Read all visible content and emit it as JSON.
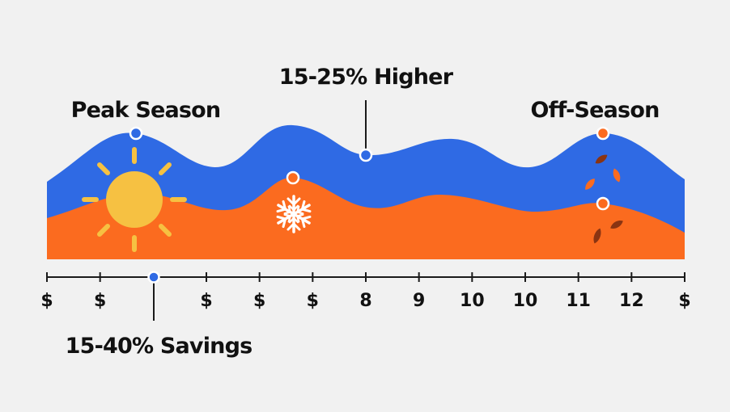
{
  "chart_data": {
    "type": "area",
    "colors": {
      "background": "#f1f1f1",
      "upper_wave": "#2f6ae4",
      "lower_wave": "#fb6b1f",
      "sun": "#f6c142",
      "snowflake": "#ffffff",
      "leaf_orange": "#fb6b1f",
      "leaf_brown": "#8a3412",
      "axis": "#1a1a1a",
      "marker_blue": "#2f6ae4",
      "marker_orange": "#fb6b1f"
    },
    "x_ticks": [
      "$",
      "$",
      "",
      "$",
      "$",
      "$",
      "8",
      "9",
      "10",
      "10",
      "11",
      "12",
      "$"
    ],
    "annotations": {
      "peak": "Peak Season",
      "higher": "15-25% Higher",
      "off": "Off-Season",
      "savings": "15-40% Savings"
    },
    "icons": [
      "sun-icon",
      "snowflake-icon",
      "leaves-icon"
    ]
  }
}
